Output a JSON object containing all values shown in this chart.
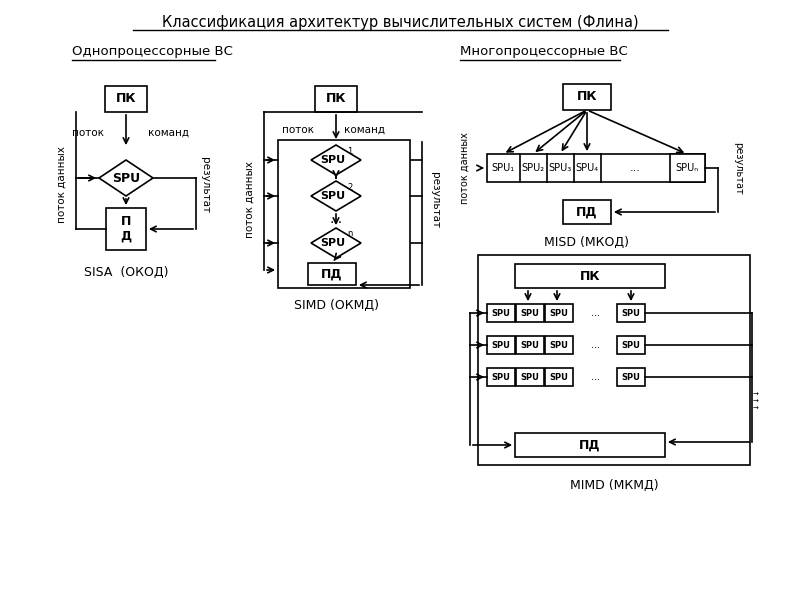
{
  "title": "Классификация архитектур вычислительных систем (Флина)",
  "subtitle_left": "Однопроцессорные ВС",
  "subtitle_right": "Многопроцессорные ВС",
  "bg_color": "#ffffff",
  "box_color": "#000000",
  "text_color": "#000000"
}
